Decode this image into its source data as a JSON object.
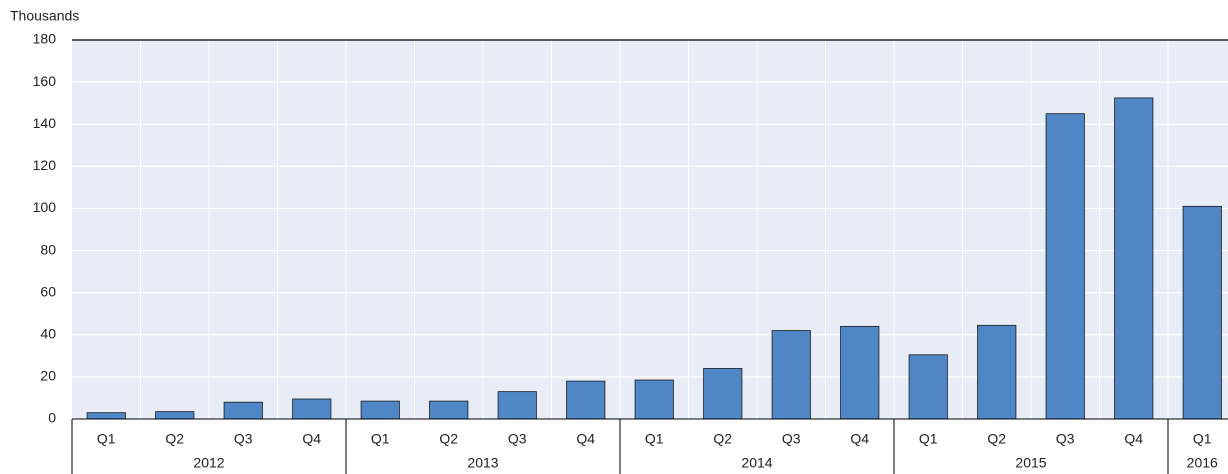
{
  "chart_data": {
    "type": "bar",
    "y_axis_label": "Thousands",
    "categories": [
      "Q1",
      "Q2",
      "Q3",
      "Q4",
      "Q1",
      "Q2",
      "Q3",
      "Q4",
      "Q1",
      "Q2",
      "Q3",
      "Q4",
      "Q1",
      "Q2",
      "Q3",
      "Q4",
      "Q1"
    ],
    "category_groups": [
      "2012",
      "2012",
      "2012",
      "2012",
      "2013",
      "2013",
      "2013",
      "2013",
      "2014",
      "2014",
      "2014",
      "2014",
      "2015",
      "2015",
      "2015",
      "2015",
      "2016"
    ],
    "values": [
      3,
      3.5,
      8,
      9.5,
      8.5,
      8.5,
      13,
      18,
      18.5,
      24,
      42,
      44,
      30.5,
      44.5,
      145,
      152.5,
      101
    ],
    "color": "#4e86c6",
    "ylim": [
      0,
      180
    ],
    "yticks": [
      0,
      20,
      40,
      60,
      80,
      100,
      120,
      140,
      160,
      180
    ],
    "grid": true
  }
}
